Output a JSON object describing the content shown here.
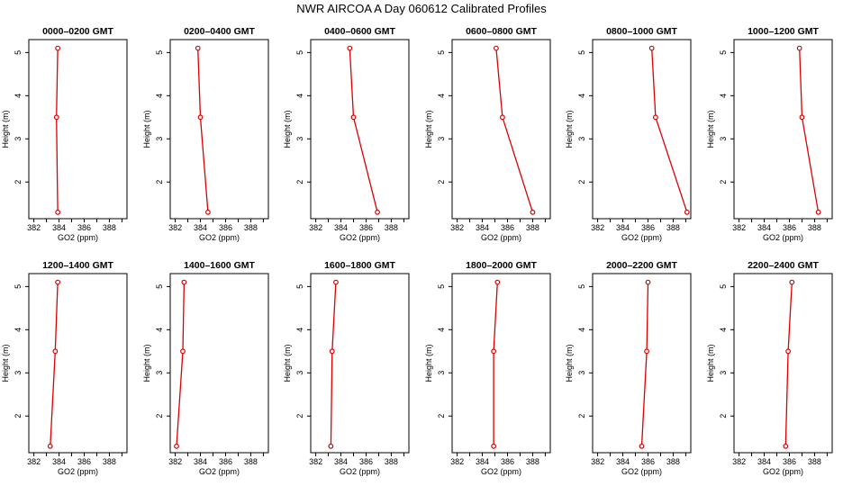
{
  "figure_title": "NWR AIRCOA A  Day 060612  Calibrated Profiles",
  "colors": {
    "series": "#dd0000",
    "axis": "#000000",
    "background": "#ffffff"
  },
  "chart_data": [
    {
      "type": "line",
      "title": "0000–0200 GMT",
      "xlabel": "GO2 (ppm)",
      "ylabel": "Height (m)",
      "xlim": [
        381.6,
        389.4
      ],
      "ylim": [
        1.15,
        5.3
      ],
      "xticks": [
        382,
        384,
        386,
        388
      ],
      "yticks": [
        2,
        3,
        4,
        5
      ],
      "points": [
        {
          "x": 383.9,
          "y": 1.3
        },
        {
          "x": 383.8,
          "y": 3.5
        },
        {
          "x": 383.9,
          "y": 5.1
        }
      ]
    },
    {
      "type": "line",
      "title": "0200–0400 GMT",
      "xlabel": "GO2 (ppm)",
      "ylabel": "Height (m)",
      "xlim": [
        381.6,
        389.4
      ],
      "ylim": [
        1.15,
        5.3
      ],
      "xticks": [
        382,
        384,
        386,
        388
      ],
      "yticks": [
        2,
        3,
        4,
        5
      ],
      "points": [
        {
          "x": 384.6,
          "y": 1.3
        },
        {
          "x": 384.0,
          "y": 3.5
        },
        {
          "x": 383.8,
          "y": 5.1
        }
      ]
    },
    {
      "type": "line",
      "title": "0400–0600 GMT",
      "xlabel": "GO2 (ppm)",
      "ylabel": "Height (m)",
      "xlim": [
        381.6,
        389.4
      ],
      "ylim": [
        1.15,
        5.3
      ],
      "xticks": [
        382,
        384,
        386,
        388
      ],
      "yticks": [
        2,
        3,
        4,
        5
      ],
      "points": [
        {
          "x": 386.9,
          "y": 1.3
        },
        {
          "x": 385.0,
          "y": 3.5
        },
        {
          "x": 384.7,
          "y": 5.1
        }
      ]
    },
    {
      "type": "line",
      "title": "0600–0800 GMT",
      "xlabel": "GO2 (ppm)",
      "ylabel": "Height (m)",
      "xlim": [
        381.6,
        389.4
      ],
      "ylim": [
        1.15,
        5.3
      ],
      "xticks": [
        382,
        384,
        386,
        388
      ],
      "yticks": [
        2,
        3,
        4,
        5
      ],
      "points": [
        {
          "x": 388.0,
          "y": 1.3
        },
        {
          "x": 385.6,
          "y": 3.5
        },
        {
          "x": 385.1,
          "y": 5.1
        }
      ]
    },
    {
      "type": "line",
      "title": "0800–1000 GMT",
      "xlabel": "GO2 (ppm)",
      "ylabel": "Height (m)",
      "xlim": [
        381.6,
        389.4
      ],
      "ylim": [
        1.15,
        5.3
      ],
      "xticks": [
        382,
        384,
        386,
        388
      ],
      "yticks": [
        2,
        3,
        4,
        5
      ],
      "points": [
        {
          "x": 389.1,
          "y": 1.3
        },
        {
          "x": 386.6,
          "y": 3.5
        },
        {
          "x": 386.3,
          "y": 5.1
        }
      ]
    },
    {
      "type": "line",
      "title": "1000–1200 GMT",
      "xlabel": "GO2 (ppm)",
      "ylabel": "Height (m)",
      "xlim": [
        381.6,
        389.4
      ],
      "ylim": [
        1.15,
        5.3
      ],
      "xticks": [
        382,
        384,
        386,
        388
      ],
      "yticks": [
        2,
        3,
        4,
        5
      ],
      "points": [
        {
          "x": 388.3,
          "y": 1.3
        },
        {
          "x": 387.0,
          "y": 3.5
        },
        {
          "x": 386.8,
          "y": 5.1
        }
      ]
    },
    {
      "type": "line",
      "title": "1200–1400 GMT",
      "xlabel": "GO2 (ppm)",
      "ylabel": "Height (m)",
      "xlim": [
        381.6,
        389.4
      ],
      "ylim": [
        1.15,
        5.3
      ],
      "xticks": [
        382,
        384,
        386,
        388
      ],
      "yticks": [
        2,
        3,
        4,
        5
      ],
      "points": [
        {
          "x": 383.3,
          "y": 1.3
        },
        {
          "x": 383.7,
          "y": 3.5
        },
        {
          "x": 383.9,
          "y": 5.1
        }
      ]
    },
    {
      "type": "line",
      "title": "1400–1600 GMT",
      "xlabel": "GO2 (ppm)",
      "ylabel": "Height (m)",
      "xlim": [
        381.6,
        389.4
      ],
      "ylim": [
        1.15,
        5.3
      ],
      "xticks": [
        382,
        384,
        386,
        388
      ],
      "yticks": [
        2,
        3,
        4,
        5
      ],
      "points": [
        {
          "x": 382.1,
          "y": 1.3
        },
        {
          "x": 382.6,
          "y": 3.5
        },
        {
          "x": 382.7,
          "y": 5.1
        }
      ]
    },
    {
      "type": "line",
      "title": "1600–1800 GMT",
      "xlabel": "GO2 (ppm)",
      "ylabel": "Height (m)",
      "xlim": [
        381.6,
        389.4
      ],
      "ylim": [
        1.15,
        5.3
      ],
      "xticks": [
        382,
        384,
        386,
        388
      ],
      "yticks": [
        2,
        3,
        4,
        5
      ],
      "points": [
        {
          "x": 383.2,
          "y": 1.3
        },
        {
          "x": 383.3,
          "y": 3.5
        },
        {
          "x": 383.6,
          "y": 5.1
        }
      ]
    },
    {
      "type": "line",
      "title": "1800–2000 GMT",
      "xlabel": "GO2 (ppm)",
      "ylabel": "Height (m)",
      "xlim": [
        381.6,
        389.4
      ],
      "ylim": [
        1.15,
        5.3
      ],
      "xticks": [
        382,
        384,
        386,
        388
      ],
      "yticks": [
        2,
        3,
        4,
        5
      ],
      "points": [
        {
          "x": 384.9,
          "y": 1.3
        },
        {
          "x": 384.9,
          "y": 3.5
        },
        {
          "x": 385.2,
          "y": 5.1
        }
      ]
    },
    {
      "type": "line",
      "title": "2000–2200 GMT",
      "xlabel": "GO2 (ppm)",
      "ylabel": "Height (m)",
      "xlim": [
        381.6,
        389.4
      ],
      "ylim": [
        1.15,
        5.3
      ],
      "xticks": [
        382,
        384,
        386,
        388
      ],
      "yticks": [
        2,
        3,
        4,
        5
      ],
      "points": [
        {
          "x": 385.5,
          "y": 1.3
        },
        {
          "x": 385.9,
          "y": 3.5
        },
        {
          "x": 386.0,
          "y": 5.1
        }
      ]
    },
    {
      "type": "line",
      "title": "2200–2400 GMT",
      "xlabel": "GO2 (ppm)",
      "ylabel": "Height (m)",
      "xlim": [
        381.6,
        389.4
      ],
      "ylim": [
        1.15,
        5.3
      ],
      "xticks": [
        382,
        384,
        386,
        388
      ],
      "yticks": [
        2,
        3,
        4,
        5
      ],
      "points": [
        {
          "x": 385.7,
          "y": 1.3
        },
        {
          "x": 385.9,
          "y": 3.5
        },
        {
          "x": 386.2,
          "y": 5.1
        }
      ]
    }
  ]
}
